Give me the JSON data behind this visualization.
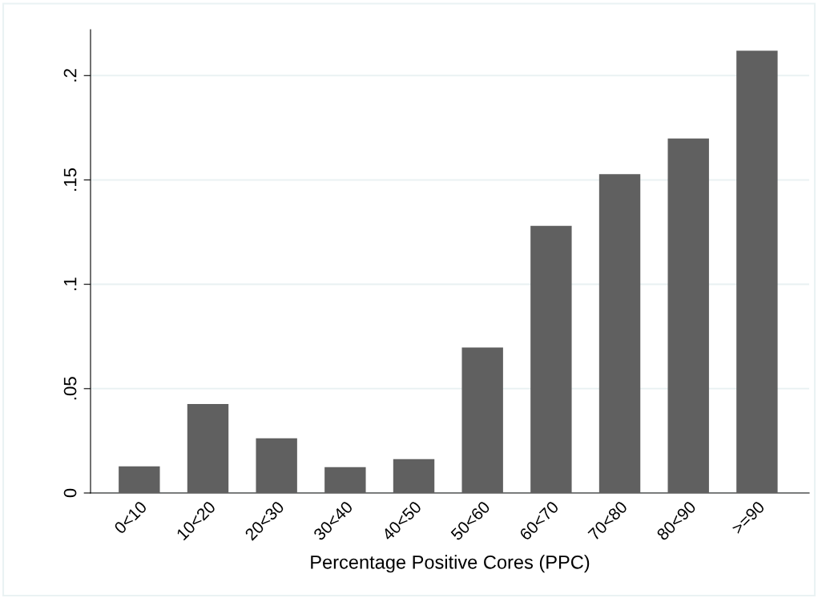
{
  "chart_data": {
    "type": "bar",
    "xlabel": "Percentage Positive Cores (PPC)",
    "categories": [
      "0<10",
      "10<20",
      "20<30",
      "30<40",
      "40<50",
      "50<60",
      "60<70",
      "70<80",
      "80<90",
      ">=90"
    ],
    "values": [
      0.0128,
      0.0426,
      0.0262,
      0.0124,
      0.0162,
      0.0697,
      0.128,
      0.1528,
      0.1699,
      0.2119
    ],
    "color": "#606060",
    "ylim": [
      0,
      0.222
    ],
    "yticks": [
      {
        "value": 0,
        "label": "0"
      },
      {
        "value": 0.05,
        "label": ".05"
      },
      {
        "value": 0.1,
        "label": ".1"
      },
      {
        "value": 0.15,
        "label": ".15"
      },
      {
        "value": 0.2,
        "label": ".2"
      }
    ],
    "grid": "y"
  }
}
